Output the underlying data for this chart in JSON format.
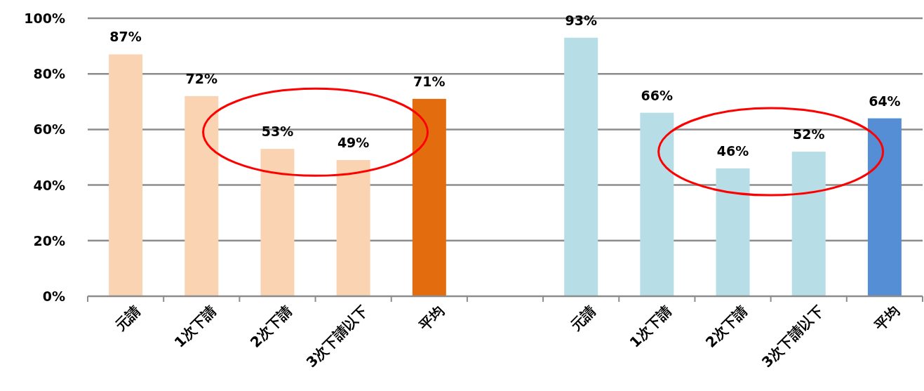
{
  "chart_data": {
    "type": "bar",
    "categories": [
      "元請",
      "1次下請",
      "2次下請",
      "3次下請以下",
      "平均",
      null,
      "元請",
      "1次下請",
      "2次下請",
      "3次下請以下",
      "平均"
    ],
    "values": [
      87,
      72,
      53,
      49,
      71,
      null,
      93,
      66,
      46,
      52,
      64
    ],
    "colors": [
      "#fad4b2",
      "#fad4b2",
      "#fad4b2",
      "#fad4b2",
      "#e36c0e",
      null,
      "#b7dde7",
      "#b7dde7",
      "#b7dde7",
      "#b7dde7",
      "#558ed5"
    ],
    "value_labels": [
      "87%",
      "72%",
      "53%",
      "49%",
      "71%",
      null,
      "93%",
      "66%",
      "46%",
      "52%",
      "64%"
    ],
    "ylim": [
      0,
      100
    ],
    "yticks": [
      {
        "value": 0,
        "label": "0%"
      },
      {
        "value": 20,
        "label": "20%"
      },
      {
        "value": 40,
        "label": "40%"
      },
      {
        "value": 60,
        "label": "60%"
      },
      {
        "value": 80,
        "label": "80%"
      },
      {
        "value": 100,
        "label": "100%"
      }
    ],
    "grid": "y"
  }
}
